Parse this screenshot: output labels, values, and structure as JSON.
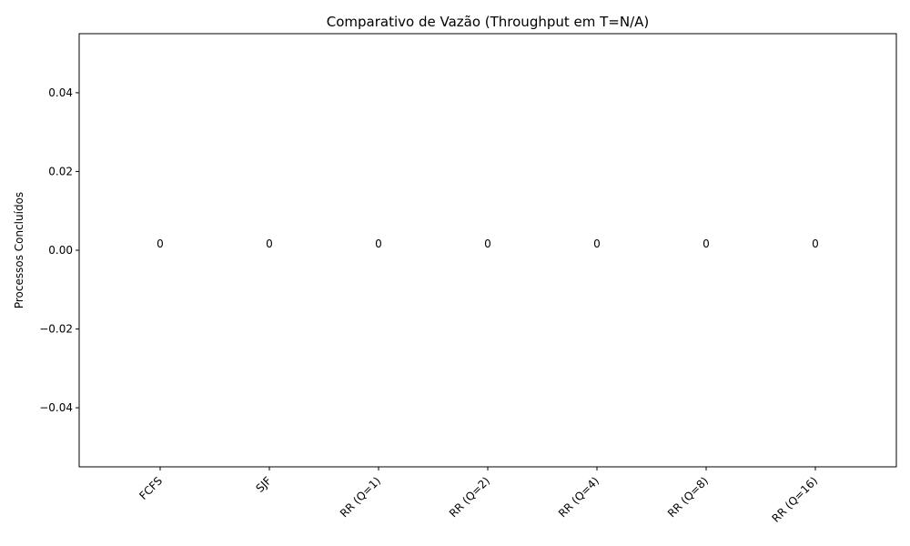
{
  "chart_data": {
    "type": "bar",
    "title": "Comparativo de Vazão (Throughput em T=N/A)",
    "xlabel": "",
    "ylabel": "Processos Concluídos",
    "categories": [
      "FCFS",
      "SJF",
      "RR (Q=1)",
      "RR (Q=2)",
      "RR (Q=4)",
      "RR (Q=8)",
      "RR (Q=16)"
    ],
    "values": [
      0,
      0,
      0,
      0,
      0,
      0,
      0
    ],
    "data_labels": [
      "0",
      "0",
      "0",
      "0",
      "0",
      "0",
      "0"
    ],
    "ylim": [
      -0.055,
      0.055
    ],
    "yticks": [
      -0.04,
      -0.02,
      0.0,
      0.02,
      0.04
    ],
    "ytick_labels": [
      "−0.04",
      "−0.02",
      "0.00",
      "0.02",
      "0.04"
    ],
    "grid": false,
    "legend": "none",
    "colors": {
      "axis": "#000000",
      "background": "#ffffff",
      "bar": "#1f77b4"
    }
  }
}
